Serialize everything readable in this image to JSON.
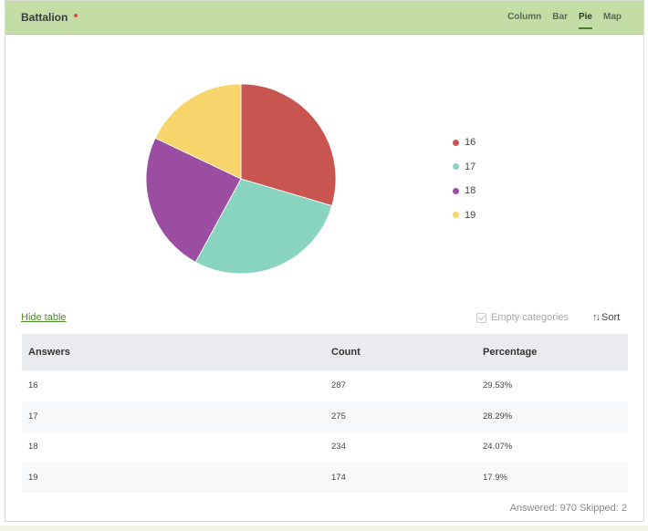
{
  "question": {
    "title": "Battalion"
  },
  "chart_tabs": [
    "Column",
    "Bar",
    "Pie",
    "Map"
  ],
  "active_tab": "Pie",
  "colors": {
    "16": "#c8554f",
    "17": "#88d4c0",
    "18": "#9b4ea1",
    "19": "#f7d56a"
  },
  "chart_data": {
    "type": "pie",
    "categories": [
      "16",
      "17",
      "18",
      "19"
    ],
    "values": [
      287,
      275,
      234,
      174
    ],
    "legend_position": "right"
  },
  "controls": {
    "hide_table": "Hide table",
    "empty_categories": "Empty categories",
    "sort": "Sort"
  },
  "table": {
    "headers": [
      "Answers",
      "Count",
      "Percentage"
    ],
    "rows": [
      [
        "16",
        "287",
        "29.53%"
      ],
      [
        "17",
        "275",
        "28.29%"
      ],
      [
        "18",
        "234",
        "24.07%"
      ],
      [
        "19",
        "174",
        "17.9%"
      ]
    ]
  },
  "footer": "Answered: 970  Skipped: 2"
}
